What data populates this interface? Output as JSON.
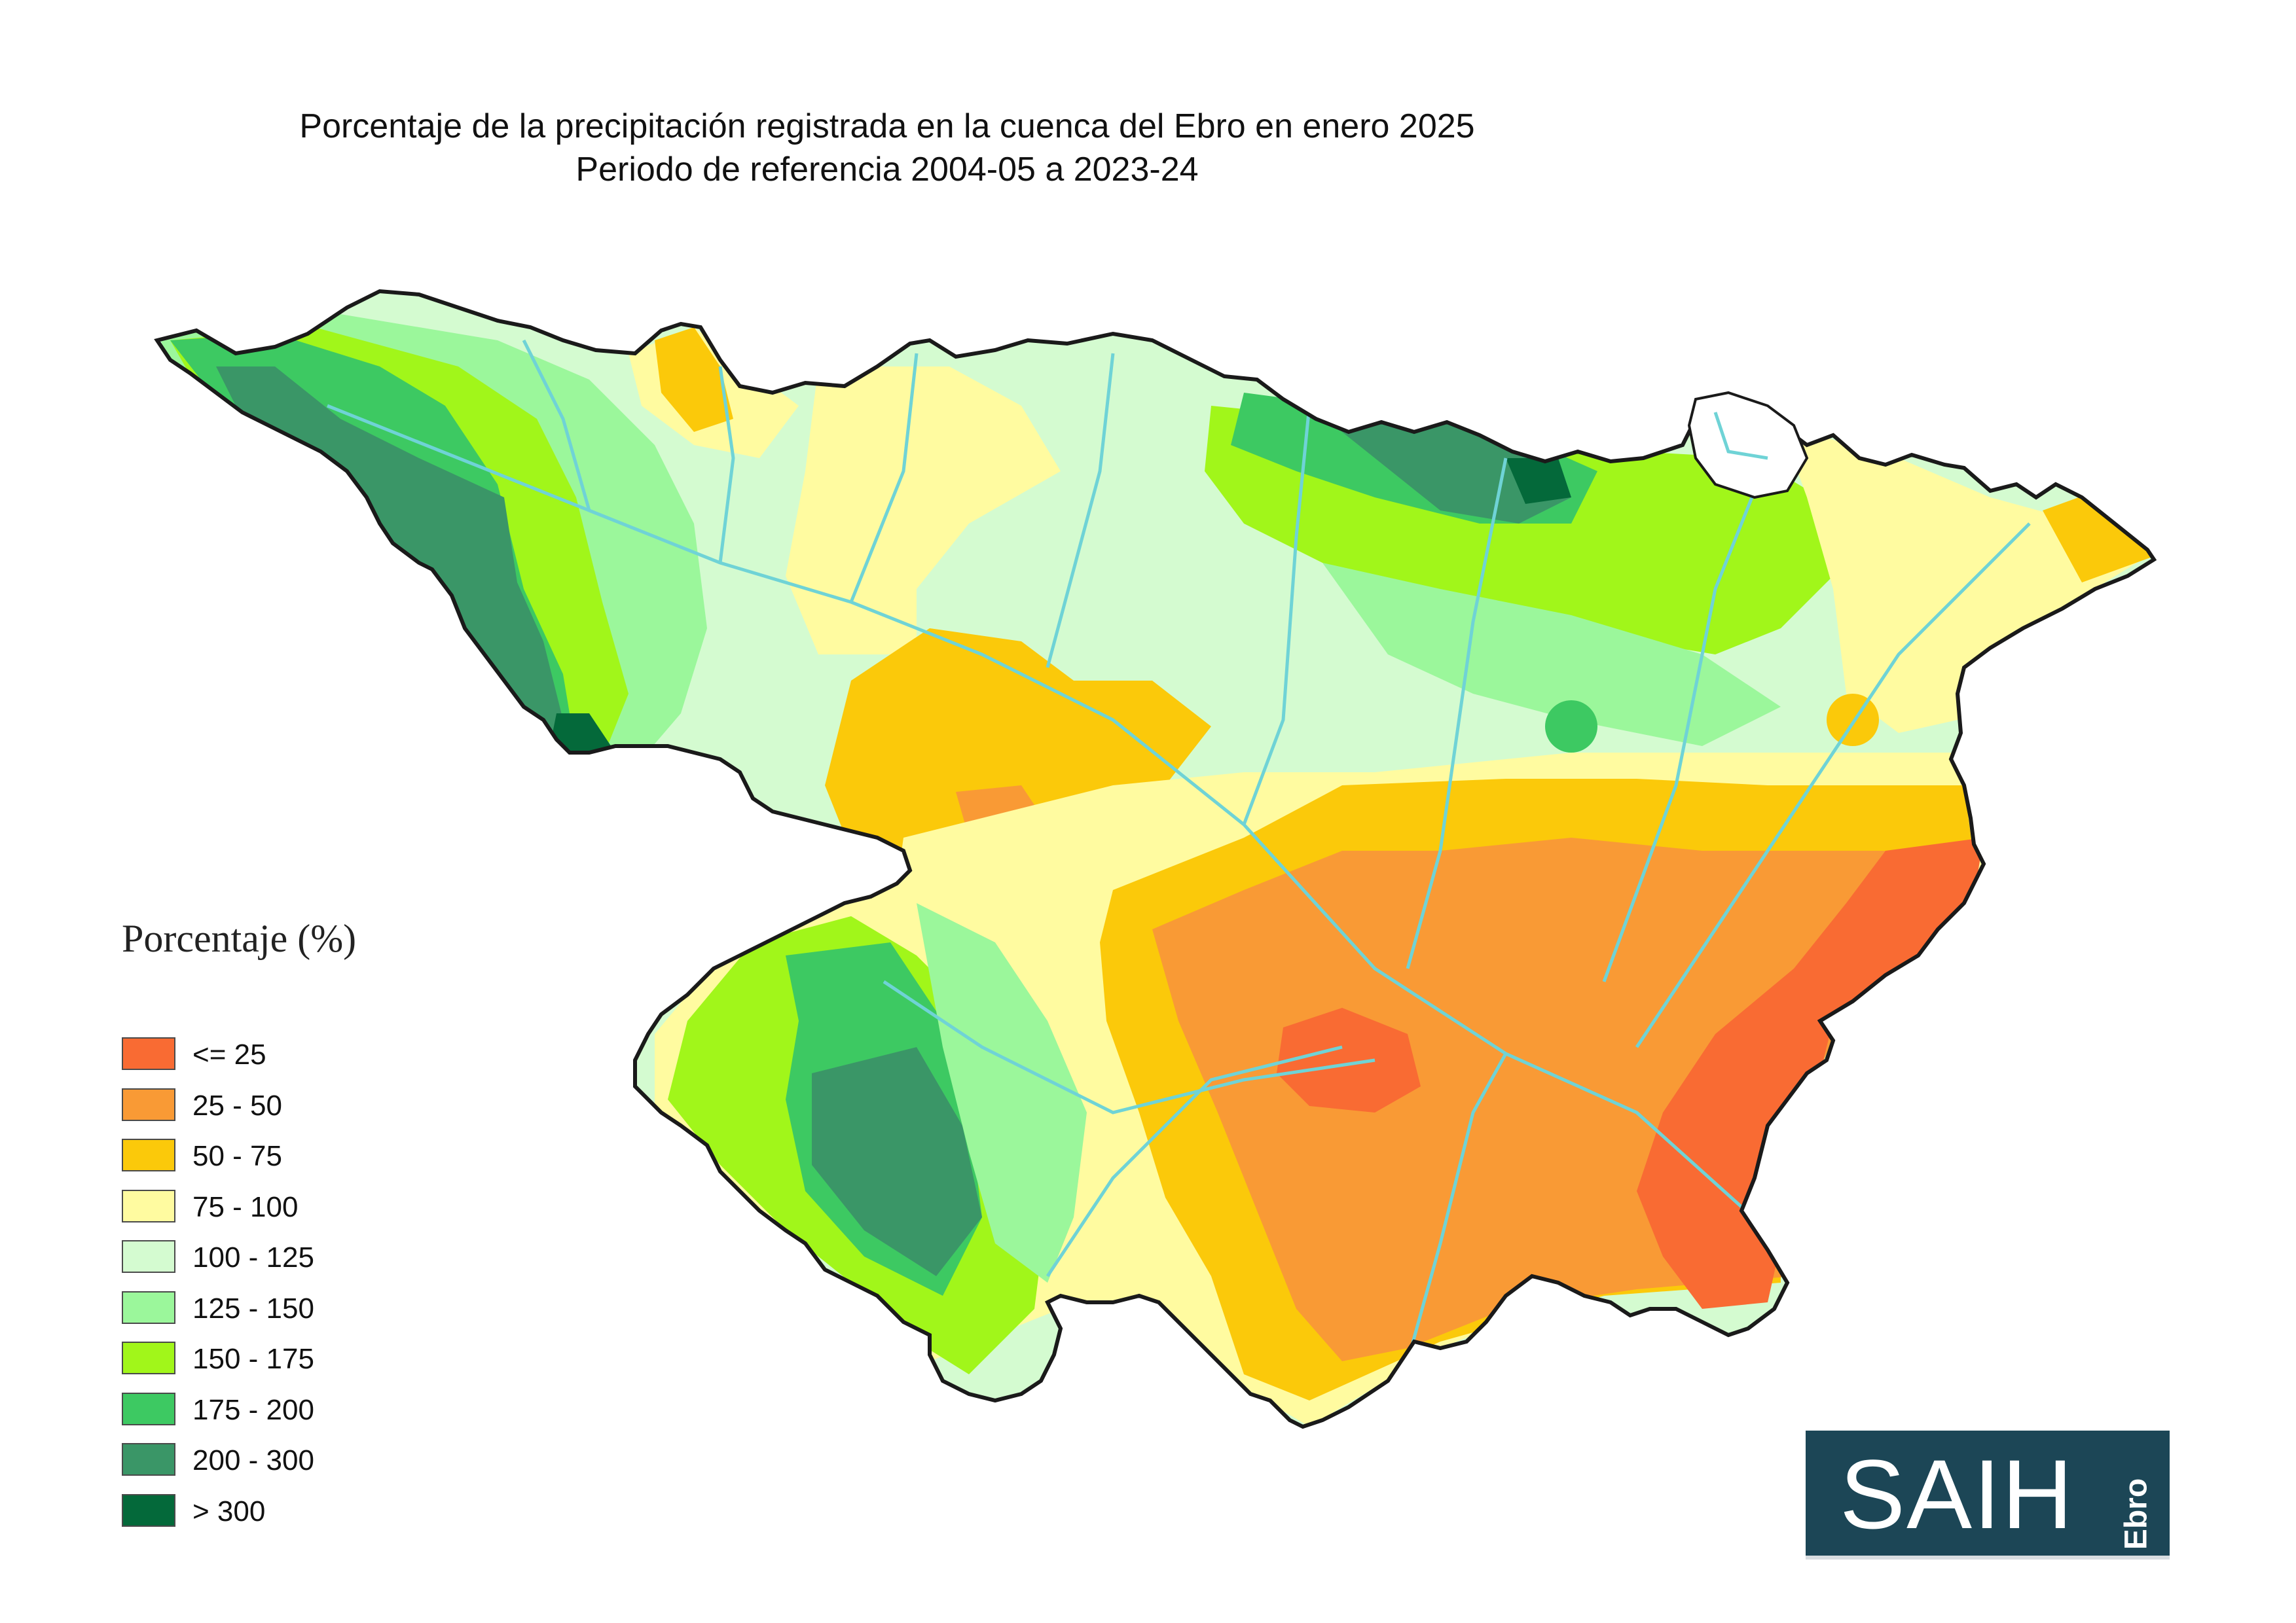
{
  "title": {
    "line1": "Porcentaje de la precipitación registrada en la cuenca del Ebro en enero 2025",
    "line2": "Periodo de referencia 2004-05 a 2023-24"
  },
  "legend": {
    "title": "Porcentaje (%)",
    "items": [
      {
        "label": "<= 25",
        "color": "#f96b33"
      },
      {
        "label": "25 - 50",
        "color": "#f99a35"
      },
      {
        "label": "50 - 75",
        "color": "#fbc90a"
      },
      {
        "label": "75 - 100",
        "color": "#fffba0"
      },
      {
        "label": "100 - 125",
        "color": "#d4fbd0"
      },
      {
        "label": "125 - 150",
        "color": "#9bf79b"
      },
      {
        "label": "150 - 175",
        "color": "#a1f61a"
      },
      {
        "label": "175 - 200",
        "color": "#3dc962"
      },
      {
        "label": "200 - 300",
        "color": "#3a9667"
      },
      {
        "label": "> 300",
        "color": "#04693a"
      }
    ]
  },
  "logo": {
    "main": "SAIH",
    "sub": "Ebro"
  },
  "map": {
    "rivers_color": "#6fd3d6",
    "boundary_color": "#1a1a1a",
    "background_fill": "#d4fbd0"
  }
}
